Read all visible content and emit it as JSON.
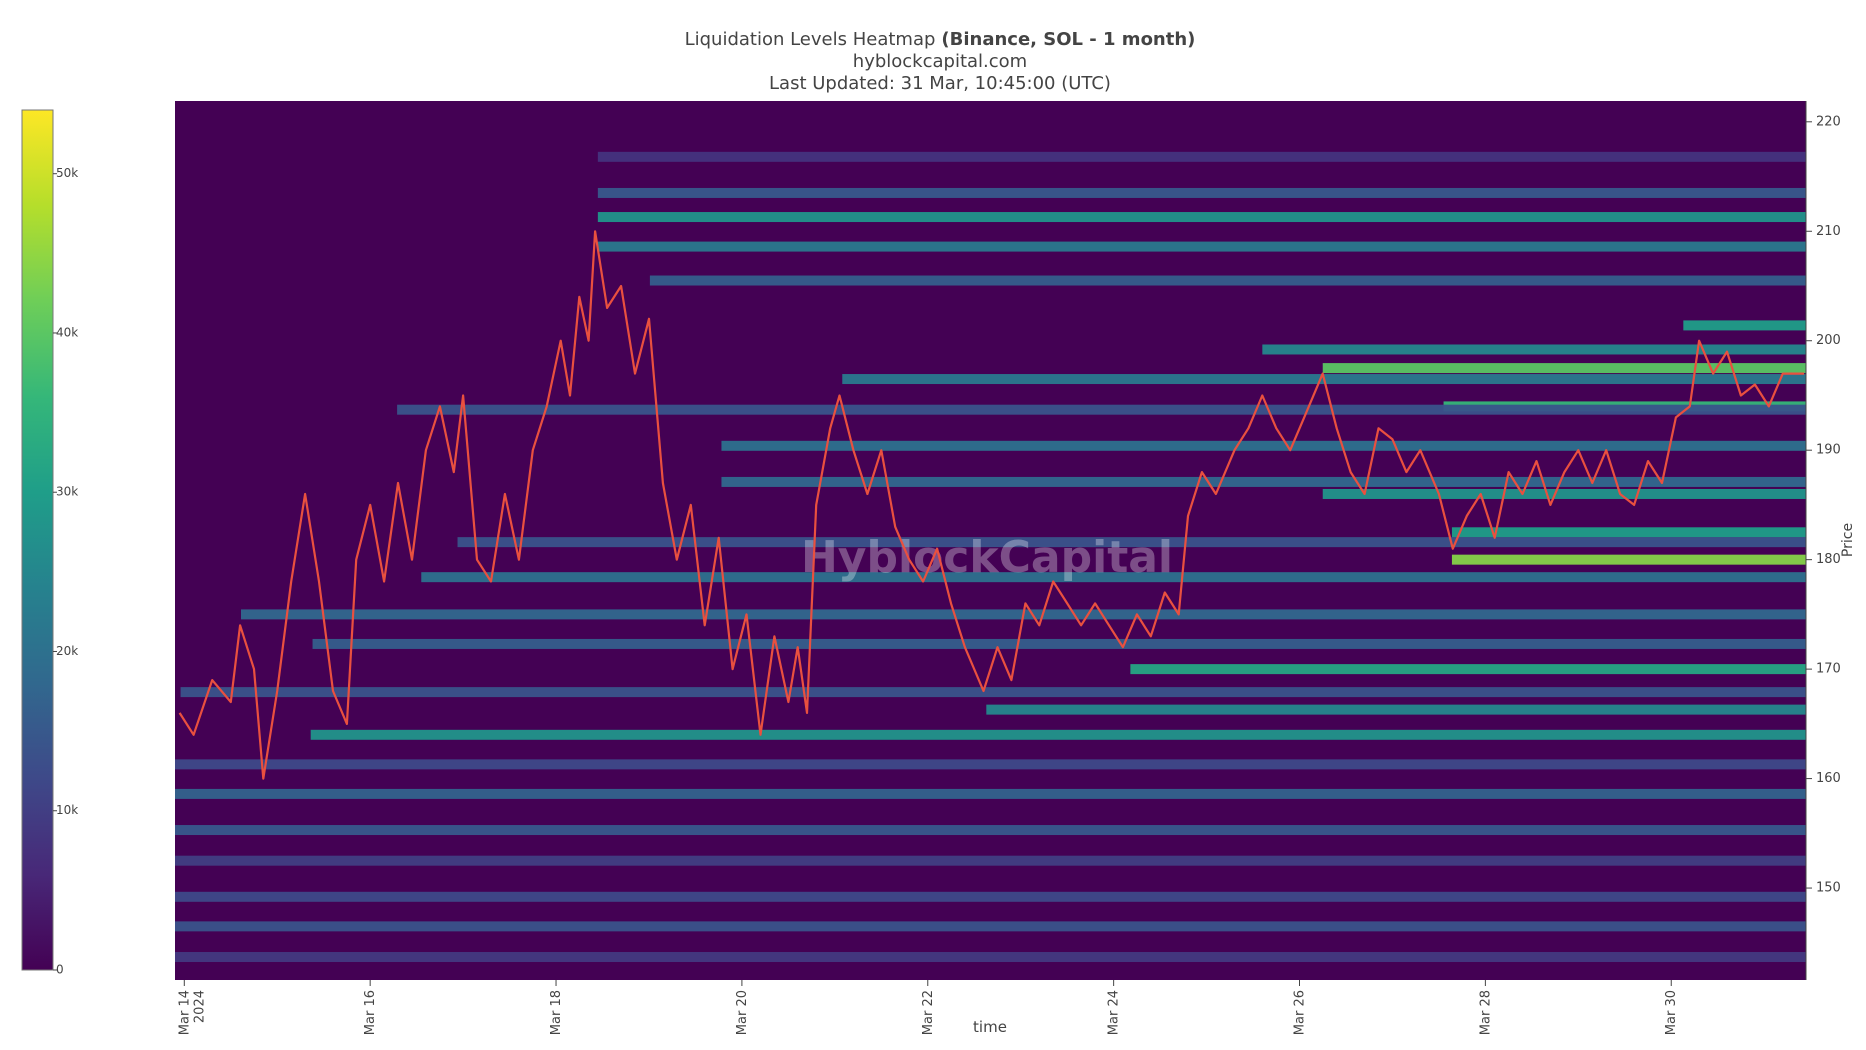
{
  "chart_data": {
    "type": "heatmap",
    "title": "Liquidation Levels Heatmap",
    "title_bold": "(Binance, SOL - 1 month)",
    "subtitle": "hyblockcapital.com",
    "updated": "Last Updated: 31 Mar, 10:45:00 (UTC)",
    "watermark": "HyblockCapital",
    "xlabel": "time",
    "ylabel": "Price",
    "xlim": [
      13.9,
      31.45
    ],
    "xticks": [
      {
        "value": 14,
        "label": "Mar 14"
      },
      {
        "value": 16,
        "label": "Mar 16"
      },
      {
        "value": 18,
        "label": "Mar 18"
      },
      {
        "value": 20,
        "label": "Mar 20"
      },
      {
        "value": 22,
        "label": "Mar 22"
      },
      {
        "value": 24,
        "label": "Mar 24"
      },
      {
        "value": 26,
        "label": "Mar 26"
      },
      {
        "value": 28,
        "label": "Mar 28"
      },
      {
        "value": 30,
        "label": "Mar 30"
      }
    ],
    "x_year": "2024",
    "ylim": [
      141.6,
      221.9
    ],
    "yticks": [
      150,
      160,
      170,
      180,
      190,
      200,
      210,
      220
    ],
    "clim": [
      0,
      54000
    ],
    "cticks": [
      0,
      {
        "value": 10000,
        "label": "10k"
      },
      {
        "value": 20000,
        "label": "20k"
      },
      {
        "value": 30000,
        "label": "30k"
      },
      {
        "value": 40000,
        "label": "40k"
      },
      {
        "value": 50000,
        "label": "50k"
      }
    ],
    "colorscale": [
      "#440154",
      "#482878",
      "#3e4989",
      "#31688e",
      "#26828e",
      "#1f9e89",
      "#35b779",
      "#6ece58",
      "#b5de2b",
      "#fde725"
    ],
    "levels": {
      "price": [
        180.0,
        197.5,
        194.0,
        170.0,
        211.3,
        182.5,
        186.0,
        201.4,
        164.0,
        166.3,
        208.6,
        213.5,
        205.5,
        199.2,
        196.5,
        190.4,
        187.1,
        178.4,
        175.0,
        172.3,
        167.9,
        161.3,
        158.6,
        155.3,
        152.5,
        149.2,
        146.5,
        143.7,
        216.8,
        193.7,
        181.6
      ],
      "start": [
        27.64,
        26.25,
        27.55,
        24.18,
        18.45,
        27.64,
        26.25,
        30.13,
        15.36,
        22.63,
        18.45,
        18.45,
        19.01,
        25.6,
        21.08,
        19.78,
        19.78,
        16.55,
        14.61,
        15.38,
        13.96,
        13.9,
        13.9,
        13.9,
        13.9,
        13.9,
        13.9,
        13.9,
        18.45,
        16.29,
        16.94
      ],
      "values": [
        44000,
        40000,
        36000,
        32000,
        28000,
        30000,
        28000,
        30000,
        28000,
        25000,
        22000,
        15000,
        16000,
        25000,
        22000,
        20000,
        18000,
        20000,
        18000,
        16000,
        14000,
        12000,
        17000,
        15000,
        10000,
        12000,
        14000,
        9000,
        8000,
        14000,
        14000
      ]
    },
    "price": {
      "color": "#e9503f",
      "x": [
        13.95,
        14.1,
        14.3,
        14.5,
        14.6,
        14.75,
        14.85,
        15.0,
        15.15,
        15.3,
        15.45,
        15.6,
        15.75,
        15.85,
        16.0,
        16.15,
        16.3,
        16.45,
        16.6,
        16.75,
        16.9,
        17.0,
        17.15,
        17.3,
        17.45,
        17.6,
        17.75,
        17.9,
        18.05,
        18.15,
        18.25,
        18.35,
        18.42,
        18.55,
        18.7,
        18.85,
        19.0,
        19.15,
        19.3,
        19.45,
        19.6,
        19.75,
        19.9,
        20.05,
        20.2,
        20.35,
        20.5,
        20.6,
        20.7,
        20.8,
        20.95,
        21.05,
        21.2,
        21.35,
        21.5,
        21.65,
        21.8,
        21.95,
        22.1,
        22.25,
        22.4,
        22.6,
        22.75,
        22.9,
        23.05,
        23.2,
        23.35,
        23.5,
        23.65,
        23.8,
        23.95,
        24.1,
        24.25,
        24.4,
        24.55,
        24.7,
        24.8,
        24.95,
        25.1,
        25.3,
        25.45,
        25.6,
        25.75,
        25.9,
        26.05,
        26.25,
        26.4,
        26.55,
        26.7,
        26.85,
        27.0,
        27.15,
        27.3,
        27.5,
        27.65,
        27.8,
        27.95,
        28.1,
        28.25,
        28.4,
        28.55,
        28.7,
        28.85,
        29.0,
        29.15,
        29.3,
        29.45,
        29.6,
        29.75,
        29.9,
        30.05,
        30.2,
        30.3,
        30.45,
        30.6,
        30.75,
        30.9,
        31.05,
        31.2,
        31.43
      ],
      "y": [
        166,
        164,
        169,
        167,
        174,
        170,
        160,
        168,
        178,
        186,
        178,
        168,
        165,
        180,
        185,
        178,
        187,
        180,
        190,
        194,
        188,
        195,
        180,
        178,
        186,
        180,
        190,
        194,
        200,
        195,
        204,
        200,
        210,
        203,
        205,
        197,
        202,
        187,
        180,
        185,
        174,
        182,
        170,
        175,
        164,
        173,
        167,
        172,
        166,
        185,
        192,
        195,
        190,
        186,
        190,
        183,
        180,
        178,
        181,
        176,
        172,
        168,
        172,
        169,
        176,
        174,
        178,
        176,
        174,
        176,
        174,
        172,
        175,
        173,
        177,
        175,
        184,
        188,
        186,
        190,
        192,
        195,
        192,
        190,
        193,
        197,
        192,
        188,
        186,
        192,
        191,
        188,
        190,
        186,
        181,
        184,
        186,
        182,
        188,
        186,
        189,
        185,
        188,
        190,
        187,
        190,
        186,
        185,
        189,
        187,
        193,
        194,
        200,
        197,
        199,
        195,
        196,
        194,
        197,
        197
      ]
    }
  }
}
